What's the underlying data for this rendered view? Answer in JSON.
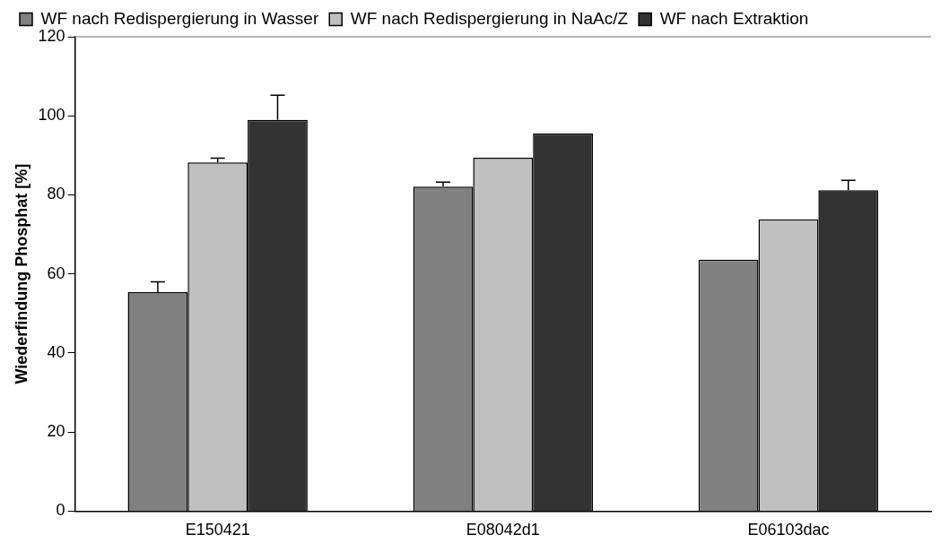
{
  "chart_data": {
    "type": "bar",
    "ylabel": "Wiederfindung Phosphat [%]",
    "categories": [
      "E150421",
      "E08042d1",
      "E06103dac"
    ],
    "series": [
      {
        "name": "WF nach Redispergierung in Wasser",
        "color": "#808080",
        "values": [
          55.4,
          82.1,
          63.6
        ],
        "errors": [
          [
            55.4,
            58
          ],
          [
            82.1,
            83.2
          ],
          null
        ]
      },
      {
        "name": "WF nach Redispergierung in NaAc/Z",
        "color": "#c0c0c0",
        "values": [
          88.2,
          89.4,
          73.8
        ],
        "errors": [
          [
            88.2,
            89.3
          ],
          null,
          null
        ]
      },
      {
        "name": "WF nach Extraktion",
        "color": "#333333",
        "values": [
          99.0,
          95.5,
          81.2
        ],
        "errors": [
          [
            99.0,
            105.2
          ],
          null,
          [
            81.2,
            83.7
          ]
        ]
      }
    ],
    "ylim": [
      0,
      120
    ],
    "yticks": [
      0,
      20,
      40,
      60,
      80,
      100,
      120
    ],
    "grid": false,
    "legend": "top"
  }
}
